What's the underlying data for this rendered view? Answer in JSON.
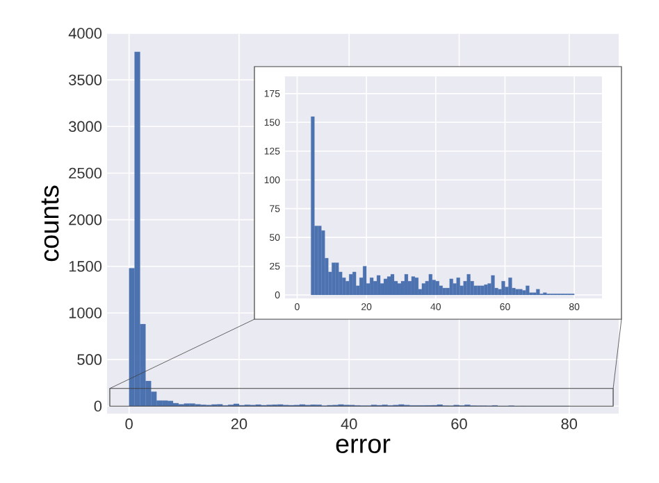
{
  "chart_data": [
    {
      "type": "histogram",
      "xlabel": "error",
      "ylabel": "counts",
      "color": "#4c72b0",
      "grid": true,
      "bins": [
        0,
        1,
        2,
        3,
        4,
        5,
        6,
        7,
        8,
        9,
        10,
        11,
        12,
        13,
        14,
        15,
        16,
        17,
        18,
        19,
        20,
        21,
        22,
        23,
        24,
        25,
        26,
        27,
        28,
        29,
        30,
        31,
        32,
        33,
        34,
        35,
        36,
        37,
        38,
        39,
        40,
        41,
        42,
        43,
        44,
        45,
        46,
        47,
        48,
        49,
        50,
        51,
        52,
        53,
        54,
        55,
        56,
        57,
        58,
        59,
        60,
        61,
        62,
        63,
        64,
        65,
        66,
        67,
        68,
        69,
        70,
        71,
        72,
        73,
        74,
        75,
        76,
        77,
        78,
        79,
        80
      ],
      "values": [
        1480,
        3800,
        880,
        270,
        155,
        60,
        60,
        56,
        32,
        20,
        28,
        28,
        20,
        15,
        12,
        18,
        20,
        8,
        15,
        25,
        10,
        15,
        12,
        17,
        10,
        14,
        16,
        18,
        12,
        10,
        12,
        18,
        12,
        16,
        15,
        5,
        10,
        12,
        18,
        13,
        12,
        8,
        6,
        6,
        14,
        10,
        15,
        8,
        12,
        18,
        12,
        8,
        8,
        8,
        9,
        10,
        17,
        6,
        5,
        12,
        7,
        15,
        6,
        5,
        5,
        4,
        8,
        2,
        2,
        5,
        1,
        2,
        1,
        1,
        1,
        1,
        1,
        1,
        1,
        1
      ],
      "xlim": [
        -4,
        89
      ],
      "ylim": [
        -80,
        4000
      ],
      "xticks": [
        0,
        20,
        40,
        60,
        80
      ],
      "yticks": [
        0,
        500,
        1000,
        1500,
        2000,
        2500,
        3000,
        3500,
        4000
      ]
    },
    {
      "type": "histogram",
      "color": "#4c72b0",
      "grid": true,
      "bins": [
        0,
        1,
        2,
        3,
        4,
        5,
        6,
        7,
        8,
        9,
        10,
        11,
        12,
        13,
        14,
        15,
        16,
        17,
        18,
        19,
        20,
        21,
        22,
        23,
        24,
        25,
        26,
        27,
        28,
        29,
        30,
        31,
        32,
        33,
        34,
        35,
        36,
        37,
        38,
        39,
        40,
        41,
        42,
        43,
        44,
        45,
        46,
        47,
        48,
        49,
        50,
        51,
        52,
        53,
        54,
        55,
        56,
        57,
        58,
        59,
        60,
        61,
        62,
        63,
        64,
        65,
        66,
        67,
        68,
        69,
        70,
        71,
        72,
        73,
        74,
        75,
        76,
        77,
        78,
        79,
        80
      ],
      "values": [
        null,
        null,
        null,
        null,
        155,
        60,
        60,
        56,
        32,
        20,
        28,
        28,
        20,
        15,
        12,
        18,
        20,
        8,
        15,
        25,
        10,
        15,
        12,
        17,
        10,
        14,
        16,
        18,
        12,
        10,
        12,
        18,
        12,
        16,
        15,
        5,
        10,
        12,
        18,
        13,
        12,
        8,
        6,
        6,
        14,
        10,
        15,
        8,
        12,
        18,
        12,
        8,
        8,
        8,
        9,
        10,
        17,
        6,
        5,
        12,
        7,
        15,
        6,
        5,
        5,
        4,
        8,
        2,
        2,
        5,
        1,
        2,
        1,
        1,
        1,
        1,
        1,
        1,
        1,
        1
      ],
      "xlim": [
        -3.5,
        88
      ],
      "ylim": [
        -3,
        190
      ],
      "xticks": [
        0,
        20,
        40,
        60,
        80
      ],
      "yticks": [
        0,
        25,
        50,
        75,
        100,
        125,
        150,
        175
      ]
    }
  ]
}
